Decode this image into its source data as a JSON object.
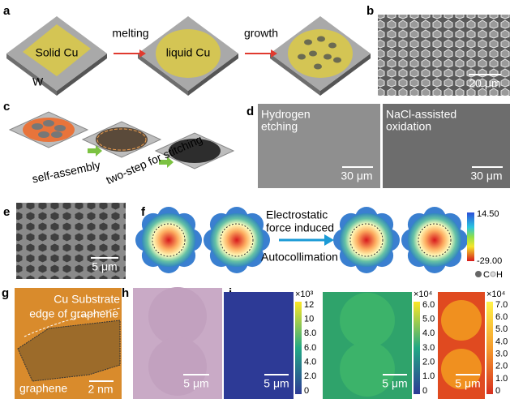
{
  "panels": {
    "a": {
      "label": "a",
      "solid": "Solid Cu",
      "substrate": "W",
      "step1": "melting",
      "liquid": "liquid Cu",
      "step2": "growth"
    },
    "b": {
      "label": "b",
      "scale": "20 μm"
    },
    "c": {
      "label": "c",
      "step1": "self-assembly",
      "step2": "two-step for stitching"
    },
    "d": {
      "label": "d",
      "left_title": [
        "Hydrogen",
        "etching"
      ],
      "right_title": [
        "NaCl-assisted",
        "oxidation"
      ],
      "left_scale": "30 μm",
      "right_scale": "30 μm"
    },
    "e": {
      "label": "e",
      "scale": "5 μm"
    },
    "f": {
      "label": "f",
      "note": [
        "Electrostatic",
        "force induced"
      ],
      "arrow": "Autocollimation",
      "colorbar": [
        "14.50",
        "-29.00"
      ],
      "atoms": [
        "C",
        "H"
      ]
    },
    "g": {
      "label": "g",
      "substrate": "Cu Substrate",
      "edge": "edge of graphene",
      "film": "graphene",
      "scale": "2 nm"
    },
    "h": {
      "label": "h",
      "scale": "5 μm"
    },
    "i": {
      "label": "i",
      "maps": [
        {
          "exponent": "×10³",
          "ticks": [
            "12",
            "10",
            "8.0",
            "6.0",
            "4.0",
            "2.0",
            "0"
          ],
          "scale": "5 μm"
        },
        {
          "exponent": "×10⁴",
          "ticks": [
            "6.0",
            "5.0",
            "4.0",
            "3.0",
            "2.0",
            "1.0",
            "0"
          ],
          "scale": "5 μm"
        },
        {
          "exponent": "×10⁴",
          "ticks": [
            "7.0",
            "6.0",
            "5.0",
            "4.0",
            "3.0",
            "2.0",
            "1.0",
            "0"
          ],
          "scale": "5 μm"
        }
      ]
    }
  }
}
